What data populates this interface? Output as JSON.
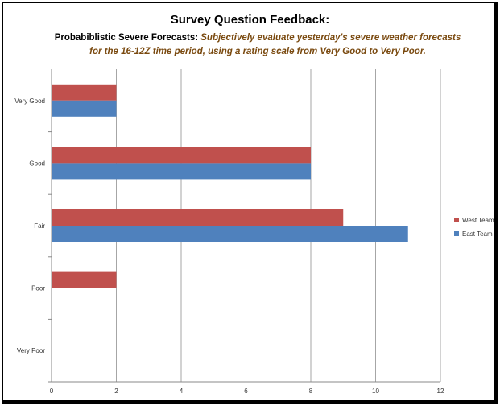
{
  "title": "Survey Question Feedback:",
  "subtitle_lead": "Probabiblistic Severe Forecasts:",
  "subtitle_desc": "Subjectively evaluate yesterday's severe weather forecasts for the 16-12Z time period, using a rating scale from Very Good to Very Poor.",
  "chart_data": {
    "type": "bar",
    "orientation": "horizontal",
    "categories": [
      "Very Good",
      "Good",
      "Fair",
      "Poor",
      "Very Poor"
    ],
    "series": [
      {
        "name": "West Team",
        "color": "#c0504d",
        "values": [
          2,
          8,
          9,
          2,
          0
        ]
      },
      {
        "name": "East Team",
        "color": "#4f81bd",
        "values": [
          2,
          8,
          11,
          0,
          0
        ]
      }
    ],
    "xlim": [
      0,
      12
    ],
    "xticks": [
      "0",
      "2",
      "4",
      "6",
      "8",
      "10",
      "12"
    ],
    "grid": true,
    "legend_position": "right"
  }
}
